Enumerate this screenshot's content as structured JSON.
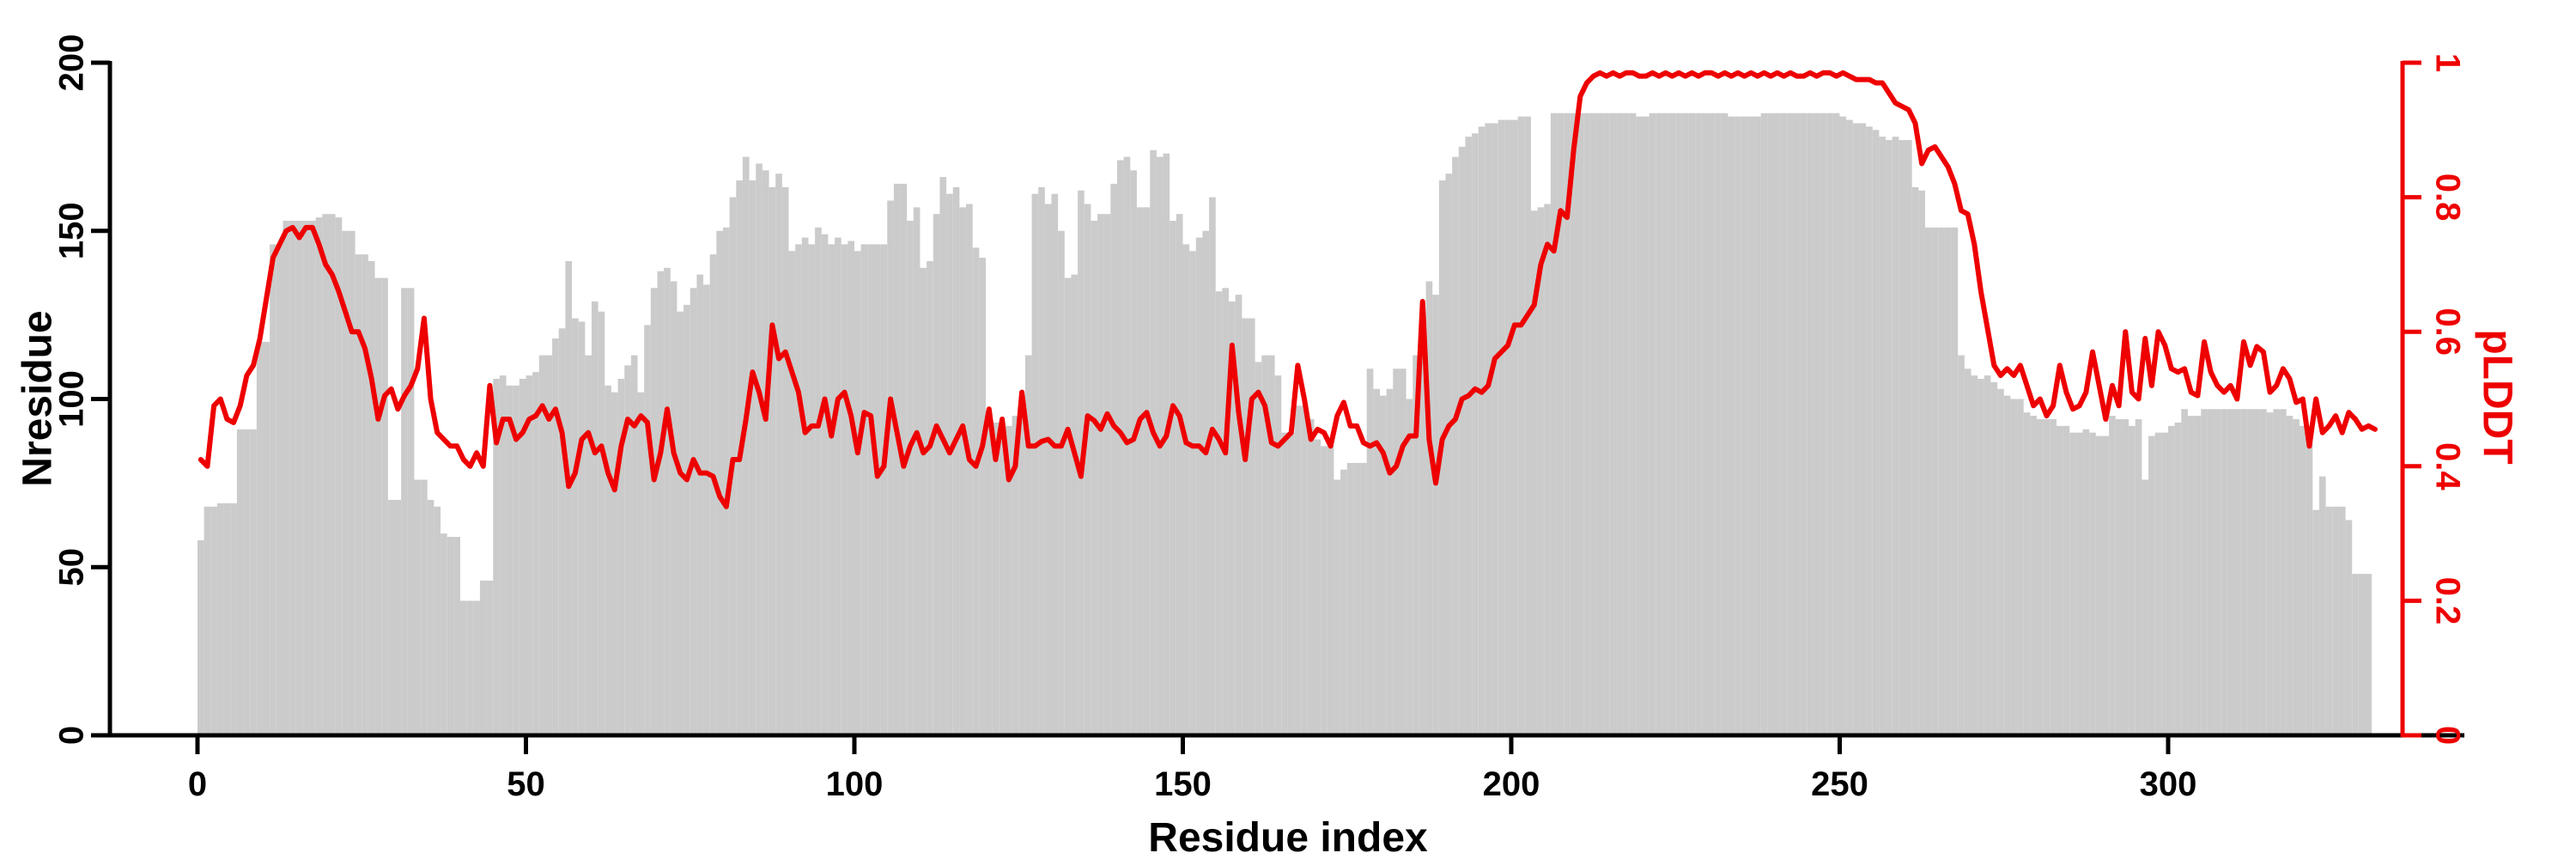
{
  "figure": {
    "background": "#ffffff",
    "bar_color": "#cbcbcb",
    "line_color": "#ee0000",
    "axis_color": "#000000"
  },
  "chart_data": {
    "type": "bar",
    "subtype": "bar-with-line-overlay",
    "title": "",
    "xlabel": "Residue index",
    "ylabel_left": "Nresidue",
    "ylabel_right": "pLDDT",
    "grid": false,
    "legend": "none",
    "first_residue": 1,
    "xlim": [
      0,
      335
    ],
    "ylim_left": [
      0,
      200
    ],
    "ylim_right": [
      0,
      1
    ],
    "x_ticks": [
      0,
      50,
      100,
      150,
      200,
      250,
      300
    ],
    "x_tick_labels": [
      "0",
      "50",
      "100",
      "150",
      "200",
      "250",
      "300"
    ],
    "y_left_ticks": [
      0,
      50,
      100,
      150,
      200
    ],
    "y_left_tick_labels": [
      "0",
      "50",
      "100",
      "150",
      "200"
    ],
    "y_right_ticks": [
      0,
      0.2,
      0.4,
      0.6,
      0.8,
      1
    ],
    "y_right_tick_labels": [
      "0",
      "0.2",
      "0.4",
      "0.6",
      "0.8",
      "1"
    ],
    "series": [
      {
        "name": "Nresidue",
        "type": "bar",
        "axis": "left",
        "color": "#cbcbcb",
        "values": [
          58,
          68,
          68,
          69,
          69,
          69,
          91,
          91,
          91,
          117,
          117,
          146,
          146,
          153,
          153,
          153,
          153,
          153,
          154,
          155,
          155,
          154,
          150,
          150,
          143,
          143,
          141,
          136,
          136,
          70,
          70,
          133,
          133,
          76,
          76,
          70,
          68,
          60,
          59,
          59,
          40,
          40,
          40,
          46,
          46,
          106,
          107,
          104,
          104,
          106,
          107,
          108,
          113,
          113,
          118,
          121,
          141,
          124,
          123,
          113,
          129,
          126,
          104,
          102,
          106,
          110,
          113,
          102,
          122,
          133,
          138,
          139,
          135,
          126,
          128,
          133,
          137,
          134,
          143,
          150,
          151,
          160,
          165,
          172,
          165,
          170,
          168,
          163,
          167,
          163,
          144,
          146,
          148,
          146,
          151,
          149,
          146,
          148,
          146,
          147,
          144,
          146,
          146,
          146,
          146,
          159,
          164,
          164,
          153,
          157,
          139,
          141,
          155,
          166,
          161,
          163,
          157,
          158,
          145,
          142,
          94,
          93,
          90,
          92,
          95,
          99,
          113,
          161,
          163,
          158,
          161,
          150,
          136,
          137,
          162,
          158,
          153,
          155,
          155,
          164,
          171,
          172,
          168,
          157,
          157,
          174,
          172,
          173,
          153,
          155,
          146,
          144,
          148,
          150,
          160,
          132,
          133,
          129,
          131,
          124,
          124,
          111,
          113,
          113,
          107,
          90,
          90,
          98,
          98,
          94,
          88,
          86,
          86,
          76,
          79,
          81,
          81,
          81,
          109,
          103,
          101,
          103,
          109,
          109,
          100,
          113,
          118,
          135,
          131,
          165,
          167,
          172,
          175,
          178,
          179,
          181,
          182,
          182,
          183,
          183,
          183,
          184,
          184,
          156,
          157,
          158,
          185,
          185,
          185,
          185,
          185,
          185,
          185,
          185,
          185,
          185,
          185,
          185,
          185,
          184,
          184,
          185,
          185,
          185,
          185,
          185,
          185,
          185,
          185,
          185,
          185,
          185,
          185,
          184,
          184,
          184,
          184,
          184,
          185,
          185,
          185,
          185,
          185,
          185,
          185,
          185,
          185,
          185,
          185,
          185,
          184,
          183,
          182,
          182,
          181,
          180,
          178,
          177,
          178,
          177,
          177,
          163,
          162,
          151,
          151,
          151,
          151,
          151,
          113,
          109,
          107,
          106,
          107,
          105,
          103,
          101,
          100,
          100,
          96,
          95,
          94,
          94,
          94,
          92,
          92,
          90,
          90,
          91,
          90,
          89,
          89,
          95,
          94,
          94,
          92,
          94,
          76,
          89,
          90,
          90,
          92,
          93,
          97,
          95,
          95,
          97,
          97,
          97,
          97,
          97,
          97,
          97,
          97,
          97,
          97,
          96,
          97,
          97,
          95,
          94,
          92,
          92,
          67,
          77,
          68,
          68,
          68,
          64,
          48,
          48,
          48
        ]
      },
      {
        "name": "pLDDT",
        "type": "line",
        "axis": "right",
        "color": "#ee0000",
        "values": [
          0.41,
          0.4,
          0.49,
          0.5,
          0.47,
          0.465,
          0.49,
          0.535,
          0.55,
          0.59,
          0.65,
          0.71,
          0.73,
          0.75,
          0.755,
          0.74,
          0.755,
          0.755,
          0.73,
          0.7,
          0.685,
          0.66,
          0.63,
          0.6,
          0.6,
          0.575,
          0.53,
          0.47,
          0.505,
          0.515,
          0.485,
          0.505,
          0.52,
          0.545,
          0.62,
          0.5,
          0.45,
          0.44,
          0.43,
          0.43,
          0.41,
          0.4,
          0.42,
          0.4,
          0.52,
          0.435,
          0.47,
          0.47,
          0.44,
          0.45,
          0.47,
          0.475,
          0.49,
          0.47,
          0.485,
          0.45,
          0.37,
          0.39,
          0.44,
          0.45,
          0.42,
          0.43,
          0.39,
          0.365,
          0.43,
          0.47,
          0.46,
          0.475,
          0.465,
          0.38,
          0.42,
          0.485,
          0.42,
          0.39,
          0.38,
          0.41,
          0.39,
          0.39,
          0.385,
          0.355,
          0.34,
          0.41,
          0.41,
          0.47,
          0.54,
          0.51,
          0.47,
          0.61,
          0.56,
          0.57,
          0.54,
          0.51,
          0.45,
          0.46,
          0.46,
          0.5,
          0.445,
          0.5,
          0.51,
          0.475,
          0.42,
          0.48,
          0.475,
          0.385,
          0.4,
          0.5,
          0.45,
          0.4,
          0.43,
          0.45,
          0.42,
          0.43,
          0.46,
          0.44,
          0.42,
          0.44,
          0.46,
          0.41,
          0.4,
          0.43,
          0.485,
          0.41,
          0.47,
          0.38,
          0.4,
          0.51,
          0.43,
          0.43,
          0.437,
          0.44,
          0.43,
          0.43,
          0.455,
          0.42,
          0.385,
          0.475,
          0.468,
          0.455,
          0.478,
          0.46,
          0.45,
          0.435,
          0.44,
          0.47,
          0.48,
          0.45,
          0.43,
          0.445,
          0.49,
          0.475,
          0.435,
          0.43,
          0.43,
          0.42,
          0.455,
          0.44,
          0.42,
          0.58,
          0.48,
          0.41,
          0.5,
          0.51,
          0.49,
          0.435,
          0.43,
          0.44,
          0.45,
          0.55,
          0.5,
          0.44,
          0.455,
          0.45,
          0.43,
          0.475,
          0.495,
          0.46,
          0.46,
          0.435,
          0.43,
          0.435,
          0.42,
          0.39,
          0.4,
          0.43,
          0.445,
          0.445,
          0.645,
          0.44,
          0.375,
          0.44,
          0.46,
          0.47,
          0.5,
          0.505,
          0.515,
          0.51,
          0.52,
          0.56,
          0.57,
          0.58,
          0.61,
          0.61,
          0.625,
          0.64,
          0.7,
          0.73,
          0.72,
          0.78,
          0.77,
          0.87,
          0.95,
          0.97,
          0.98,
          0.985,
          0.98,
          0.985,
          0.98,
          0.985,
          0.985,
          0.98,
          0.98,
          0.985,
          0.98,
          0.985,
          0.98,
          0.985,
          0.98,
          0.985,
          0.98,
          0.985,
          0.985,
          0.98,
          0.985,
          0.98,
          0.985,
          0.98,
          0.985,
          0.98,
          0.985,
          0.98,
          0.985,
          0.98,
          0.985,
          0.98,
          0.98,
          0.985,
          0.98,
          0.985,
          0.985,
          0.98,
          0.985,
          0.98,
          0.975,
          0.975,
          0.975,
          0.97,
          0.97,
          0.955,
          0.94,
          0.935,
          0.93,
          0.91,
          0.85,
          0.87,
          0.875,
          0.86,
          0.845,
          0.82,
          0.78,
          0.775,
          0.73,
          0.66,
          0.605,
          0.55,
          0.535,
          0.545,
          0.535,
          0.55,
          0.52,
          0.49,
          0.5,
          0.475,
          0.49,
          0.55,
          0.51,
          0.485,
          0.49,
          0.51,
          0.57,
          0.52,
          0.47,
          0.52,
          0.49,
          0.6,
          0.51,
          0.5,
          0.59,
          0.52,
          0.6,
          0.58,
          0.545,
          0.54,
          0.545,
          0.51,
          0.505,
          0.585,
          0.54,
          0.52,
          0.51,
          0.52,
          0.5,
          0.585,
          0.55,
          0.578,
          0.57,
          0.51,
          0.52,
          0.545,
          0.53,
          0.495,
          0.5,
          0.43,
          0.5,
          0.45,
          0.46,
          0.475,
          0.45,
          0.48,
          0.47,
          0.455,
          0.46,
          0.455
        ]
      }
    ]
  }
}
